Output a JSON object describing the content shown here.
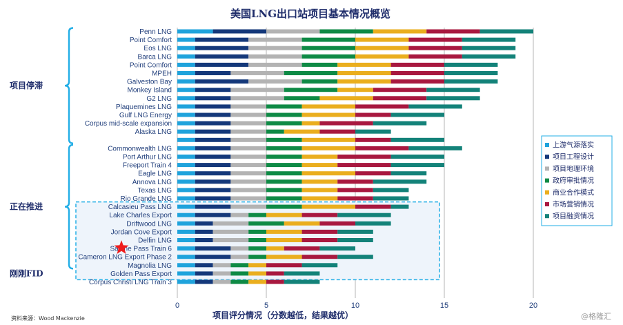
{
  "chart_data": {
    "type": "bar",
    "orientation": "horizontal",
    "stacked": true,
    "title": "美国LNG出口站项目基本情况概览",
    "xlabel": "项目评分情况（分数越低，结果越优）",
    "xlim": [
      0,
      20
    ],
    "xticks": [
      0,
      5,
      10,
      15,
      20
    ],
    "grid": true,
    "legend_position": "right",
    "source": "资料来源：Wood Mackenzie",
    "watermark": "@格隆汇",
    "series_colors": [
      "#1fa3dc",
      "#14387a",
      "#b3b3b3",
      "#0e8a45",
      "#eaae1e",
      "#a8183f",
      "#138279"
    ],
    "series_names": [
      "上游气源落实",
      "项目工程设计",
      "项目地理环境",
      "政府审批情况",
      "商业合作模式",
      "市场营销情况",
      "项目融资情况"
    ],
    "groups": [
      {
        "label": "项目停滞",
        "start": 0,
        "end": 13
      },
      {
        "label": "正在推进",
        "start": 14,
        "end": 28
      },
      {
        "label": "刚刚FID",
        "start": 29,
        "end": 29
      }
    ],
    "highlight_box": {
      "start": 21,
      "end": 29
    },
    "star_category": 26,
    "rows": [
      {
        "name": "Penn LNG",
        "v": [
          2,
          3,
          3,
          3,
          3,
          3,
          3
        ]
      },
      {
        "name": "Point Comfort",
        "v": [
          1,
          3,
          3,
          3,
          3,
          3,
          3
        ]
      },
      {
        "name": "Eos LNG",
        "v": [
          1,
          3,
          3,
          3,
          3,
          3,
          3
        ]
      },
      {
        "name": "Barca LNG",
        "v": [
          1,
          3,
          3,
          3,
          3,
          3,
          3
        ]
      },
      {
        "name": "Point Comfort",
        "v": [
          1,
          3,
          3,
          2,
          3,
          3,
          3
        ]
      },
      {
        "name": "MPEH",
        "v": [
          1,
          2,
          3,
          3,
          3,
          3,
          3
        ]
      },
      {
        "name": "Galveston Bay",
        "v": [
          1,
          3,
          3,
          2,
          3,
          3,
          3
        ]
      },
      {
        "name": "Monkey Island",
        "v": [
          1,
          2,
          3,
          3,
          2,
          3,
          3
        ]
      },
      {
        "name": "G2 LNG",
        "v": [
          1,
          2,
          3,
          2,
          3,
          3,
          3
        ]
      },
      {
        "name": "Plaquemines LNG",
        "v": [
          1,
          2,
          2,
          2,
          3,
          3,
          3
        ]
      },
      {
        "name": "Gulf LNG Energy",
        "v": [
          1,
          2,
          2,
          2,
          3,
          2,
          3
        ]
      },
      {
        "name": "Corpus mid-scale expansion",
        "v": [
          1,
          2,
          2,
          2,
          1,
          3,
          3
        ]
      },
      {
        "name": "Alaska LNG",
        "v": [
          1,
          2,
          2,
          1,
          2,
          2,
          2
        ]
      },
      {
        "name": "",
        "v": [
          1,
          2,
          2,
          2,
          3,
          2,
          3
        ]
      },
      {
        "name": "Commonwealth LNG",
        "v": [
          1,
          2,
          2,
          2,
          3,
          3,
          3
        ]
      },
      {
        "name": "Port Arthur LNG",
        "v": [
          1,
          2,
          2,
          2,
          2,
          3,
          3
        ]
      },
      {
        "name": "Freeport Train 4",
        "v": [
          1,
          2,
          2,
          2,
          2,
          3,
          3
        ]
      },
      {
        "name": "Eagle LNG",
        "v": [
          1,
          2,
          2,
          2,
          3,
          2,
          2
        ]
      },
      {
        "name": "Annova LNG",
        "v": [
          1,
          2,
          2,
          2,
          2,
          2,
          3
        ]
      },
      {
        "name": "Texas LNG",
        "v": [
          1,
          2,
          2,
          2,
          2,
          2,
          2
        ]
      },
      {
        "name": "Rio Grande LNG",
        "v": [
          1,
          2,
          2,
          2,
          2,
          2,
          2
        ]
      },
      {
        "name": "Calcasieu Pass LNG",
        "v": [
          1,
          2,
          2,
          2,
          3,
          2,
          1
        ]
      },
      {
        "name": "Lake Charles Export",
        "v": [
          1,
          2,
          1,
          1,
          2,
          2,
          3
        ]
      },
      {
        "name": "Driftwood LNG",
        "v": [
          1,
          1,
          2,
          2,
          2,
          2,
          2
        ]
      },
      {
        "name": "Jordan Cove Export",
        "v": [
          1,
          1,
          2,
          1,
          2,
          2,
          2
        ]
      },
      {
        "name": "Delfin LNG",
        "v": [
          1,
          1,
          2,
          1,
          2,
          2,
          2
        ]
      },
      {
        "name": "Sabine Pass Train 6",
        "v": [
          1,
          2,
          1,
          1,
          1,
          2,
          2
        ]
      },
      {
        "name": "Cameron LNG Export Phase 2",
        "v": [
          1,
          2,
          1,
          1,
          2,
          2,
          2
        ]
      },
      {
        "name": "Magnolia LNG",
        "v": [
          1,
          1,
          1,
          1,
          1,
          2,
          2
        ]
      },
      {
        "name": "Golden Pass Export",
        "v": [
          1,
          1,
          1,
          1,
          1,
          1,
          2
        ]
      },
      {
        "name": "Corpus Christi LNG Train 3",
        "v": [
          1,
          1,
          1,
          1,
          1,
          1,
          2
        ]
      }
    ]
  }
}
